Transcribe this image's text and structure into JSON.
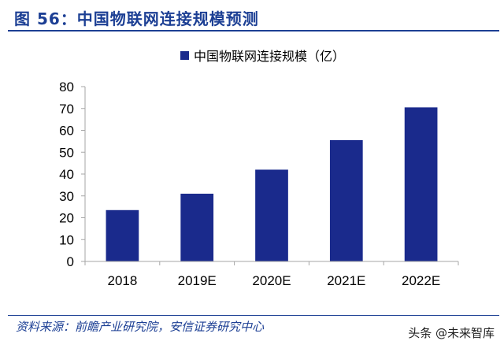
{
  "header": {
    "figure_title": "图 56：中国物联网连接规模预测"
  },
  "footer": {
    "source": "资料来源：前瞻产业研究院，安信证券研究中心",
    "watermark": "头条 @未来智库"
  },
  "chart_data": {
    "type": "bar",
    "categories": [
      "2018",
      "2019E",
      "2020E",
      "2021E",
      "2022E"
    ],
    "series": [
      {
        "name": "中国物联网连接规模（亿）",
        "values": [
          23.5,
          31,
          42,
          55.5,
          70.5
        ],
        "color": "#1a2a8c"
      }
    ],
    "ylim": [
      0,
      80
    ],
    "yticks": [
      0,
      10,
      20,
      30,
      40,
      50,
      60,
      70,
      80
    ],
    "grid": false,
    "legend_position": "top-center",
    "axis_color": "#a6a6a6"
  }
}
